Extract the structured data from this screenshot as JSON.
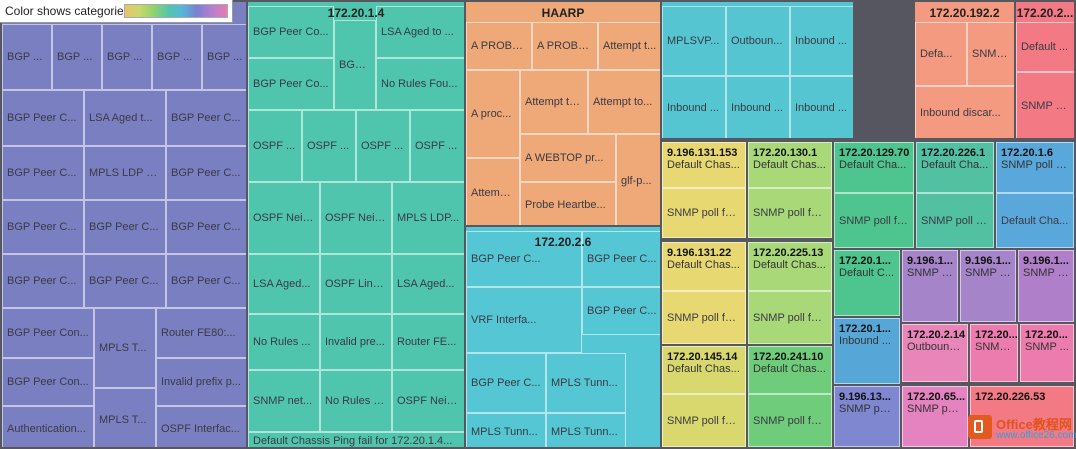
{
  "legend": {
    "title": "Color shows categories",
    "colors": [
      "#e8c46a",
      "#8fd36e",
      "#55b8d8",
      "#7a80d2",
      "#e87cb0"
    ]
  },
  "chart_data": {
    "type": "treemap",
    "groups": [
      {
        "name": "",
        "color": "#7a7fc2",
        "labels": [
          "BGP ...",
          "BGP ...",
          "BGP ...",
          "BGP ...",
          "BGP ...",
          "BGP Peer C...",
          "LSA Aged t...",
          "BGP Peer C...",
          "BGP Peer C...",
          "MPLS LDP S...",
          "BGP Peer C...",
          "BGP Peer C...",
          "BGP Peer C...",
          "BGP Peer C...",
          "BGP Peer C...",
          "BGP Peer C...",
          "BGP Peer C...",
          "BGP Peer Con...",
          "MPLS T...",
          "Router FE80:...",
          "BGP Peer Con...",
          "Invalid prefix p...",
          "Authentication...",
          "MPLS T...",
          "OSPF Interfac..."
        ]
      },
      {
        "name": "172.20.1.4",
        "color": "#4fc5ad",
        "labels": [
          "BGP Peer Co...",
          "BGP ...",
          "LSA Aged to ...",
          "BGP Peer Co...",
          "No Rules Fou...",
          "OSPF ...",
          "OSPF ...",
          "OSPF ...",
          "OSPF ...",
          "OSPF Neig...",
          "OSPF Neig...",
          "MPLS LDP...",
          "LSA Aged...",
          "OSPF Link ...",
          "LSA Aged...",
          "No Rules ...",
          "Invalid pre...",
          "Router FE...",
          "SNMP net...",
          "No Rules F...",
          "OSPF Neig...",
          "Default Chassis Ping fail for 172.20.1.4..."
        ]
      },
      {
        "name": "HAARP",
        "color": "#efa878",
        "labels": [
          "A PROBE...",
          "A PROBE...",
          "Attempt t...",
          "A proc...",
          "Attempt to...",
          "Attempt to...",
          "A WEBTOP pr...",
          "Attemp...",
          "glf-p...",
          "Probe Heartbe..."
        ]
      },
      {
        "name": "",
        "color": "#55c6d1",
        "labels": [
          "MPLSVP...",
          "Outboun...",
          "Inbound ...",
          "Outboun...",
          "Inbound ...",
          "Inbound ...",
          "Inbound ...",
          "Inbound ..."
        ]
      },
      {
        "name": "172.20.192.2",
        "color": "#f49a80",
        "labels": [
          "Defa...",
          "SNMP...",
          "Inbound discar..."
        ]
      },
      {
        "name": "172.20.2...",
        "color": "#f37a85",
        "labels": [
          "Default ...",
          "SNMP po..."
        ]
      },
      {
        "name": "172.20.2.6",
        "color": "#55c6d4",
        "labels": [
          "BGP Peer C...",
          "BGP Peer C...",
          "VRF Interfa...",
          "BGP Peer C...",
          "BGP Peer C...",
          "MPLS Tunn...",
          "MPLS Tunn...",
          "MPLS Tunn..."
        ]
      },
      {
        "name": "9.196.131.153",
        "color": "#e8d872",
        "labels": [
          "Default Chas...",
          "SNMP poll fail..."
        ]
      },
      {
        "name": "172.20.130.1",
        "color": "#a8d878",
        "labels": [
          "Default Chas...",
          "SNMP poll fail..."
        ]
      },
      {
        "name": "172.20.129.70",
        "color": "#4ec58e",
        "labels": [
          "Default Cha...",
          "SNMP poll fa..."
        ]
      },
      {
        "name": "172.20.226.1",
        "color": "#52c1a2",
        "labels": [
          "Default Cha...",
          "SNMP poll fa..."
        ]
      },
      {
        "name": "172.20.1.6",
        "color": "#5aa8db",
        "labels": [
          "SNMP poll fa...",
          "Default Cha..."
        ]
      },
      {
        "name": "9.196.131.22",
        "color": "#e8d872",
        "labels": [
          "Default Chas...",
          "SNMP poll fail..."
        ]
      },
      {
        "name": "172.20.225.13",
        "color": "#a8d878",
        "labels": [
          "Default Chas...",
          "SNMP poll fail..."
        ]
      },
      {
        "name": "172.20.1...",
        "color": "#4ec58e",
        "labels": [
          "Default C..."
        ]
      },
      {
        "name": "9.196.1...",
        "color": "#a584c9",
        "labels": [
          "SNMP p..."
        ]
      },
      {
        "name": "9.196.1...",
        "color": "#a584c9",
        "labels": [
          "SNMP p..."
        ]
      },
      {
        "name": "9.196.1...",
        "color": "#b07fc9",
        "labels": [
          "SNMP p..."
        ]
      },
      {
        "name": "172.20.1...",
        "color": "#56a7d8",
        "labels": [
          "Inbound ..."
        ]
      },
      {
        "name": "172.20.2.14",
        "color": "#e886b9",
        "labels": [
          "Outbound..."
        ]
      },
      {
        "name": "172.20...",
        "color": "#ec7cad",
        "labels": [
          "SNMP ..."
        ]
      },
      {
        "name": "172.20...",
        "color": "#ec7cad",
        "labels": [
          "SNMP ..."
        ]
      },
      {
        "name": "172.20.145.14",
        "color": "#d9d86e",
        "labels": [
          "Default Chas...",
          "SNMP poll fail..."
        ]
      },
      {
        "name": "172.20.241.10",
        "color": "#6fcc7a",
        "labels": [
          "Default Chas...",
          "SNMP poll fail..."
        ]
      },
      {
        "name": "9.196.13...",
        "color": "#7e87d0",
        "labels": [
          "SNMP poll fa..."
        ]
      },
      {
        "name": "172.20.65...",
        "color": "#e483c0",
        "labels": [
          "SNMP poll..."
        ]
      },
      {
        "name": "172.20.226.53",
        "color": "#f37a85",
        "labels": []
      }
    ]
  },
  "watermark": {
    "title": "Office教程网",
    "url": "www.office26.com"
  }
}
